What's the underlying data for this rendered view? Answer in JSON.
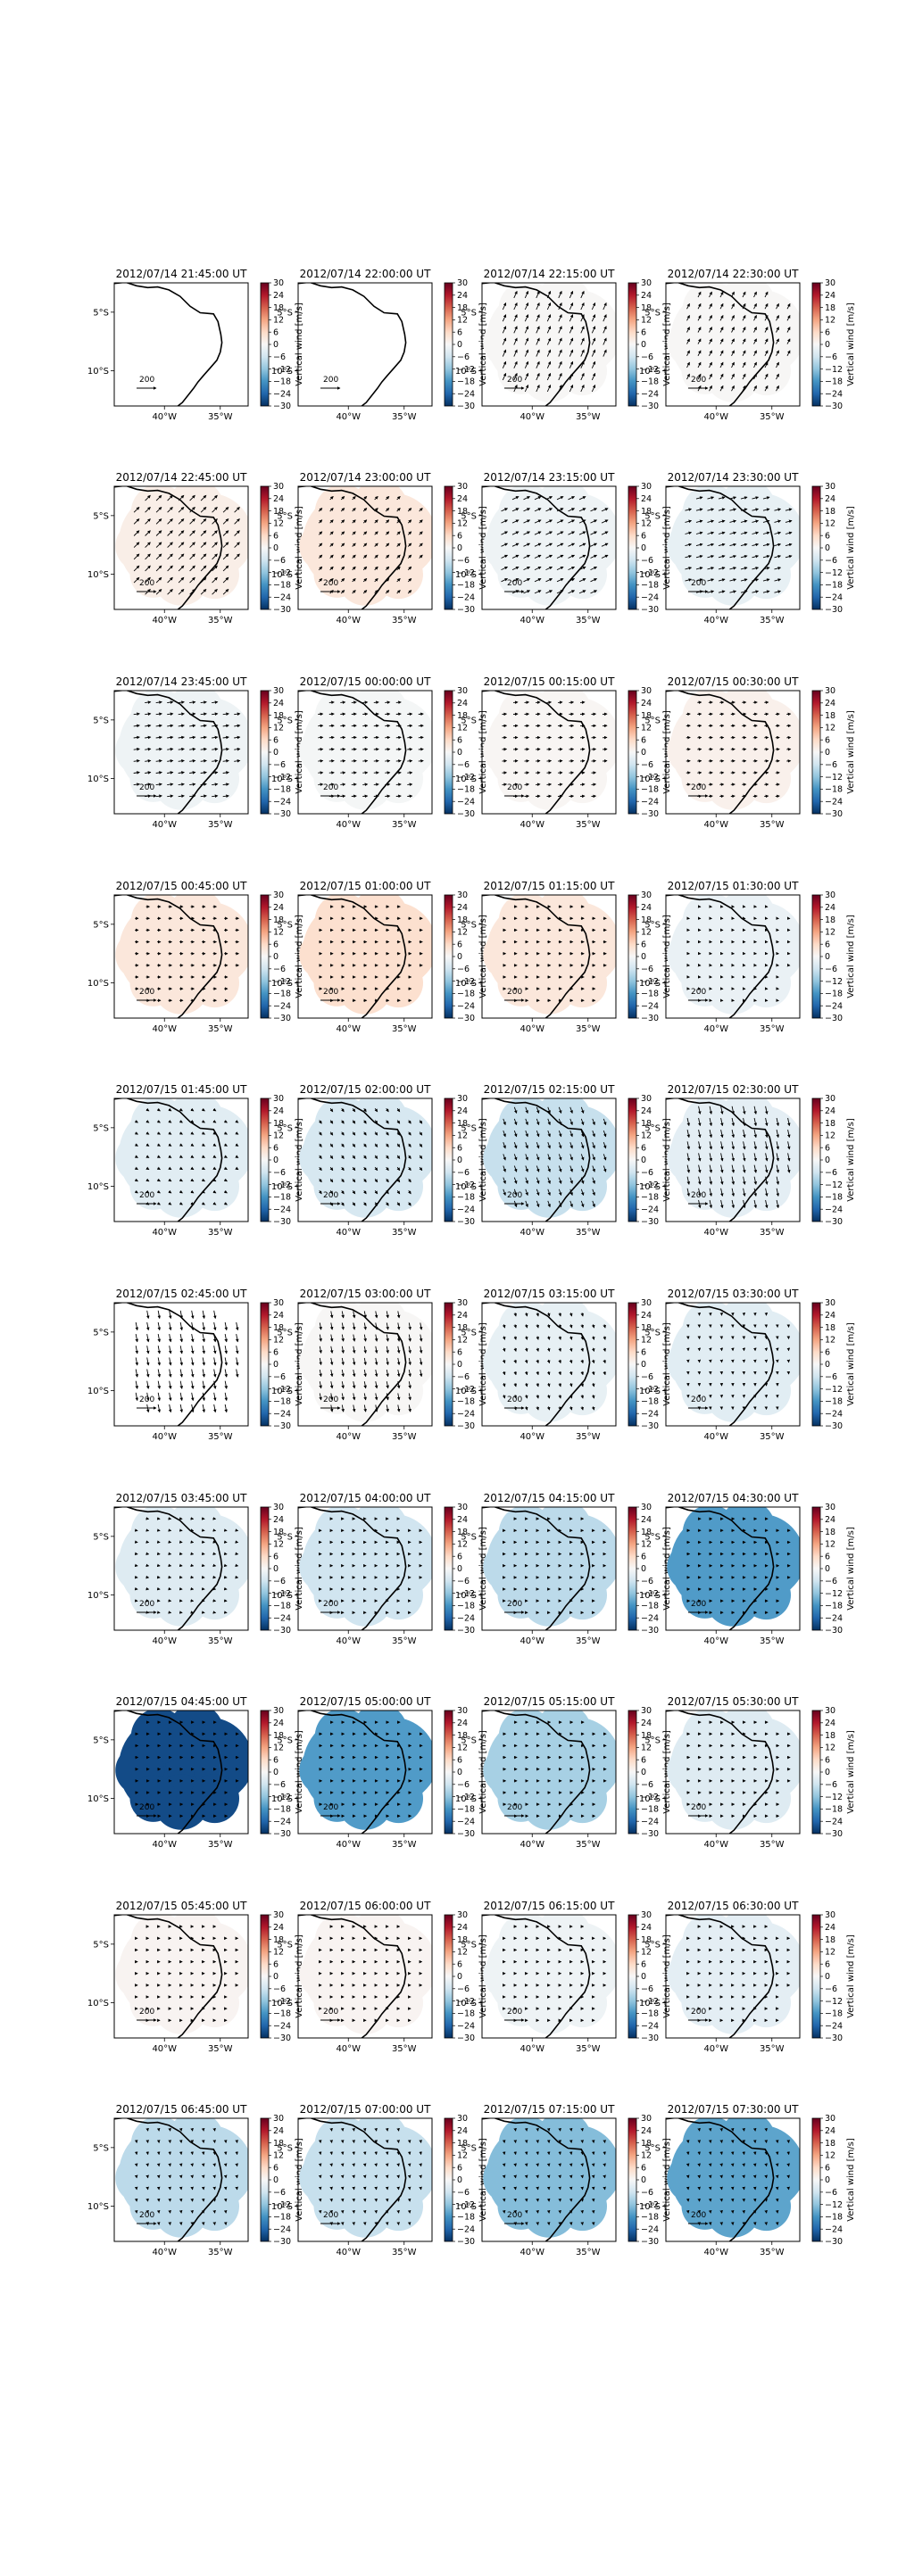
{
  "chart_data": {
    "type": "heatmap",
    "description_of_layout": "grid",
    "layout": {
      "rows": 10,
      "cols": 4
    },
    "colorbar": {
      "label": "Vertical wind [m/s]",
      "ticks": [
        30,
        24,
        18,
        12,
        6,
        0,
        -6,
        -12,
        -18,
        -24,
        -30
      ],
      "tick_labels": [
        "30",
        "24",
        "18",
        "12",
        "6",
        "0",
        "−6",
        "−12",
        "−18",
        "−24",
        "−30"
      ],
      "range": [
        -30,
        30
      ],
      "colormap": "RdBu_r"
    },
    "axes": {
      "x_ticks": [
        "40°W",
        "35°W"
      ],
      "y_ticks": [
        "5°S",
        "10°S"
      ],
      "xlim_deg_east": [
        -44.5,
        -32.5
      ],
      "ylim_deg_north": [
        -13.0,
        -2.5
      ]
    },
    "reference_vector": {
      "label": "200"
    },
    "panels": [
      {
        "title": "2012/07/14 21:45:00 UT",
        "vertical_wind": null,
        "arrow_angle": null,
        "arrow_length": 0
      },
      {
        "title": "2012/07/14 22:00:00 UT",
        "vertical_wind": null,
        "arrow_angle": null,
        "arrow_length": 0
      },
      {
        "title": "2012/07/14 22:15:00 UT",
        "vertical_wind": 0.3,
        "arrow_angle": -65,
        "arrow_length": 0.75
      },
      {
        "title": "2012/07/14 22:30:00 UT",
        "vertical_wind": 0.3,
        "arrow_angle": -62,
        "arrow_length": 0.6
      },
      {
        "title": "2012/07/14 22:45:00 UT",
        "vertical_wind": 2,
        "arrow_angle": -45,
        "arrow_length": 0.75
      },
      {
        "title": "2012/07/14 23:00:00 UT",
        "vertical_wind": 3.5,
        "arrow_angle": -45,
        "arrow_length": 0.45
      },
      {
        "title": "2012/07/14 23:15:00 UT",
        "vertical_wind": -1.5,
        "arrow_angle": -25,
        "arrow_length": 0.7
      },
      {
        "title": "2012/07/14 23:30:00 UT",
        "vertical_wind": -2.5,
        "arrow_angle": -15,
        "arrow_length": 0.65
      },
      {
        "title": "2012/07/14 23:45:00 UT",
        "vertical_wind": -1.5,
        "arrow_angle": -8,
        "arrow_length": 0.6
      },
      {
        "title": "2012/07/15 00:00:00 UT",
        "vertical_wind": -0.5,
        "arrow_angle": -5,
        "arrow_length": 0.5
      },
      {
        "title": "2012/07/15 00:15:00 UT",
        "vertical_wind": 0.5,
        "arrow_angle": -5,
        "arrow_length": 0.45
      },
      {
        "title": "2012/07/15 00:30:00 UT",
        "vertical_wind": 1.5,
        "arrow_angle": -5,
        "arrow_length": 0.4
      },
      {
        "title": "2012/07/15 00:45:00 UT",
        "vertical_wind": 3.5,
        "arrow_angle": 0,
        "arrow_length": 0.35
      },
      {
        "title": "2012/07/15 01:00:00 UT",
        "vertical_wind": 5,
        "arrow_angle": 0,
        "arrow_length": 0.3
      },
      {
        "title": "2012/07/15 01:15:00 UT",
        "vertical_wind": 3.5,
        "arrow_angle": 0,
        "arrow_length": 0.3
      },
      {
        "title": "2012/07/15 01:30:00 UT",
        "vertical_wind": -2,
        "arrow_angle": 5,
        "arrow_length": 0.25
      },
      {
        "title": "2012/07/15 01:45:00 UT",
        "vertical_wind": -3.5,
        "arrow_angle": 30,
        "arrow_length": 0.3
      },
      {
        "title": "2012/07/15 02:00:00 UT",
        "vertical_wind": -5,
        "arrow_angle": 55,
        "arrow_length": 0.4
      },
      {
        "title": "2012/07/15 02:15:00 UT",
        "vertical_wind": -7,
        "arrow_angle": 70,
        "arrow_length": 0.65
      },
      {
        "title": "2012/07/15 02:30:00 UT",
        "vertical_wind": -3,
        "arrow_angle": 78,
        "arrow_length": 0.8
      },
      {
        "title": "2012/07/15 02:45:00 UT",
        "vertical_wind": null,
        "arrow_angle": 80,
        "arrow_length": 0.8
      },
      {
        "title": "2012/07/15 03:00:00 UT",
        "vertical_wind": 0.3,
        "arrow_angle": 80,
        "arrow_length": 0.7
      },
      {
        "title": "2012/07/15 03:15:00 UT",
        "vertical_wind": -2.5,
        "arrow_angle": 75,
        "arrow_length": 0.35
      },
      {
        "title": "2012/07/15 03:30:00 UT",
        "vertical_wind": -3.5,
        "arrow_angle": 85,
        "arrow_length": 0.2
      },
      {
        "title": "2012/07/15 03:45:00 UT",
        "vertical_wind": -4,
        "arrow_angle": 10,
        "arrow_length": 0.2
      },
      {
        "title": "2012/07/15 04:00:00 UT",
        "vertical_wind": -6,
        "arrow_angle": 0,
        "arrow_length": 0.2
      },
      {
        "title": "2012/07/15 04:15:00 UT",
        "vertical_wind": -8,
        "arrow_angle": 0,
        "arrow_length": 0.2
      },
      {
        "title": "2012/07/15 04:30:00 UT",
        "vertical_wind": -17,
        "arrow_angle": -2,
        "arrow_length": 0.3
      },
      {
        "title": "2012/07/15 04:45:00 UT",
        "vertical_wind": -27,
        "arrow_angle": -2,
        "arrow_length": 0.3
      },
      {
        "title": "2012/07/15 05:00:00 UT",
        "vertical_wind": -17,
        "arrow_angle": -2,
        "arrow_length": 0.3
      },
      {
        "title": "2012/07/15 05:15:00 UT",
        "vertical_wind": -10,
        "arrow_angle": -2,
        "arrow_length": 0.3
      },
      {
        "title": "2012/07/15 05:30:00 UT",
        "vertical_wind": -4,
        "arrow_angle": -2,
        "arrow_length": 0.3
      },
      {
        "title": "2012/07/15 05:45:00 UT",
        "vertical_wind": 0.8,
        "arrow_angle": 0,
        "arrow_length": 0.2
      },
      {
        "title": "2012/07/15 06:00:00 UT",
        "vertical_wind": 0.8,
        "arrow_angle": 0,
        "arrow_length": 0.2
      },
      {
        "title": "2012/07/15 06:15:00 UT",
        "vertical_wind": -1.5,
        "arrow_angle": 0,
        "arrow_length": 0.2
      },
      {
        "title": "2012/07/15 06:30:00 UT",
        "vertical_wind": -3,
        "arrow_angle": 0,
        "arrow_length": 0.2
      },
      {
        "title": "2012/07/15 06:45:00 UT",
        "vertical_wind": -8,
        "arrow_angle": 80,
        "arrow_length": 0.2
      },
      {
        "title": "2012/07/15 07:00:00 UT",
        "vertical_wind": -7,
        "arrow_angle": 80,
        "arrow_length": 0.2
      },
      {
        "title": "2012/07/15 07:15:00 UT",
        "vertical_wind": -13,
        "arrow_angle": 80,
        "arrow_length": 0.2
      },
      {
        "title": "2012/07/15 07:30:00 UT",
        "vertical_wind": -16,
        "arrow_angle": 80,
        "arrow_length": 0.2
      }
    ]
  }
}
